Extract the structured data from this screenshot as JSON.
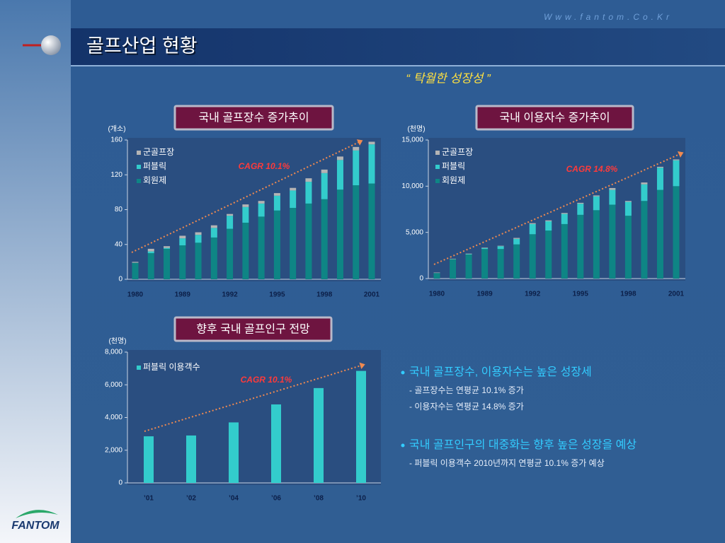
{
  "header": {
    "url": "Www.fantom.Co.Kr",
    "title": "골프산업 현황",
    "subtitle": "“ 탁월한 성장성 ”"
  },
  "chart_data": [
    {
      "type": "bar",
      "stacked": true,
      "title": "국내 골프장수 증가추이",
      "y_label": "(개소)",
      "annotation": "CAGR 10.1%",
      "categories": [
        "1980",
        null,
        null,
        "1989",
        null,
        null,
        "1992",
        null,
        null,
        "1995",
        null,
        null,
        "1998",
        null,
        null,
        "2001"
      ],
      "series": [
        {
          "name": "군골프장",
          "color": "#b4b4b4",
          "values": [
            1,
            3,
            2,
            3,
            3,
            3,
            2,
            3,
            3,
            3,
            3,
            4,
            4,
            4,
            4,
            3
          ]
        },
        {
          "name": "퍼블릭",
          "color": "#33cccc",
          "values": [
            0,
            2,
            1,
            8,
            9,
            11,
            15,
            18,
            15,
            17,
            20,
            25,
            30,
            34,
            40,
            45
          ]
        },
        {
          "name": "회원제",
          "color": "#0e8585",
          "values": [
            19,
            30,
            35,
            39,
            42,
            48,
            58,
            65,
            72,
            79,
            82,
            87,
            92,
            103,
            108,
            110
          ]
        }
      ],
      "ylim": [
        0,
        160
      ],
      "yticks": [
        0,
        40,
        80,
        120,
        160
      ]
    },
    {
      "type": "bar",
      "stacked": true,
      "title": "국내 이용자수 증가추이",
      "y_label": "(천명)",
      "annotation": "CAGR 14.8%",
      "categories": [
        "1980",
        null,
        null,
        "1989",
        null,
        null,
        "1992",
        null,
        null,
        "1995",
        null,
        null,
        "1998",
        null,
        null,
        "2001"
      ],
      "series": [
        {
          "name": "군골프장",
          "color": "#b4b4b4",
          "values": [
            50,
            50,
            50,
            50,
            50,
            100,
            100,
            100,
            100,
            100,
            100,
            200,
            100,
            200,
            100,
            100
          ]
        },
        {
          "name": "퍼블릭",
          "color": "#33cccc",
          "values": [
            0,
            0,
            50,
            100,
            300,
            600,
            1100,
            1000,
            1100,
            1200,
            1500,
            1600,
            1500,
            1800,
            2400,
            2800
          ]
        },
        {
          "name": "회원제",
          "color": "#0e8585",
          "values": [
            600,
            2100,
            2600,
            3200,
            3200,
            3700,
            4800,
            5200,
            5900,
            6900,
            7400,
            8000,
            6800,
            8400,
            9600,
            10000
          ]
        }
      ],
      "ylim": [
        0,
        15000
      ],
      "yticks": [
        0,
        {
          "value": 5000,
          "label": "5,000"
        },
        {
          "value": 10000,
          "label": "10,000"
        },
        {
          "value": 15000,
          "label": "15,000"
        }
      ]
    },
    {
      "type": "bar",
      "stacked": false,
      "title": "향후 국내 골프인구 전망",
      "y_label": "(천명)",
      "annotation": "CAGR 10.1%",
      "categories": [
        "’01",
        "’02",
        "’04",
        "’06",
        "’08",
        "’10"
      ],
      "series": [
        {
          "name": "퍼블릭 이용객수",
          "color": "#33cccc",
          "values": [
            2850,
            2900,
            3700,
            4800,
            5800,
            6850
          ]
        }
      ],
      "ylim": [
        0,
        8000
      ],
      "yticks": [
        0,
        {
          "value": 2000,
          "label": "2,000"
        },
        {
          "value": 4000,
          "label": "4,000"
        },
        {
          "value": 6000,
          "label": "6,000"
        },
        {
          "value": 8000,
          "label": "8,000"
        }
      ]
    }
  ],
  "bullets": [
    {
      "text": "국내 골프장수, 이용자수는 높은 성장세",
      "sub": [
        "- 골프장수는 연평균 10.1% 증가",
        "- 이용자수는 연평균 14.8% 증가"
      ]
    },
    {
      "text": "국내 골프인구의 대중화는 향후 높은 성장을 예상",
      "sub": [
        "- 퍼블릭 이용객수 2010년까지 연평균 10.1% 증가 예상"
      ]
    }
  ],
  "logo": "FANTOM"
}
